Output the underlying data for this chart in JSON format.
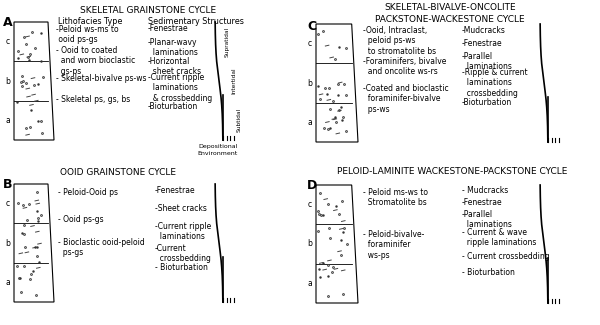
{
  "title_A": "SKELETAL GRAINSTONE CYCLE",
  "title_B": "OOID GRAINSTONE CYCLE",
  "title_C": "SKELETAL-BIVALVE-ONCOLITE\nPACKSTONE-WACKESTONE CYCLE",
  "title_D": "PELOID-LAMINITE WACKESTONE-PACKSTONE CYCLE",
  "litho_A": [
    "-Peloid ws-ms to\n ooid ps-gs",
    "- Ooid to coated\n  and worn bioclastic\n  gs-ps",
    "- Skeletal-bivalve ps-ws",
    "- Skeletal ps, gs, bs"
  ],
  "sed_A": [
    "-Fenestrae",
    "-Planar-wavy\n  laminations",
    "-Horizontal\n  sheet cracks",
    "-Current ripple\n  laminations\n  & crossbedding",
    "-Bioturbation"
  ],
  "litho_B": [
    "- Peloid-Ooid ps",
    "- Ooid ps-gs",
    "- Bioclastic ooid-peloid\n  ps-gs"
  ],
  "sed_B": [
    "-Fenestrae",
    "-Sheet cracks",
    "-Current ripple\n  laminations",
    "-Current\n  crossbedding",
    "- Bioturbation"
  ],
  "litho_C": [
    "-Ooid, Intraclast,\n  peloid ps-ws\n  to stromatolite bs",
    "-Foraminifers, bivalve\n  and oncolite ws-rs",
    "-Coated and bioclastic\n  foraminifer-bivalve\n  ps-ws"
  ],
  "sed_C": [
    "-Mudcracks",
    "-Fenestrae",
    "-Parallel\n  laminations",
    "-Ripple & current\n  laminations\n  crossbedding",
    "-Bioturbation"
  ],
  "litho_D": [
    "- Peloid ms-ws to\n  Stromatolite bs",
    "- Peloid-bivalve-\n  foraminifer\n  ws-ps"
  ],
  "sed_D": [
    "- Mudcracks",
    "-Fenestrae",
    "-Parallel\n  laminations",
    "- Current & wave\n  ripple laminations",
    "- Current crossbedding",
    "- Bioturbation"
  ],
  "font_size": 5.5,
  "title_font_size": 6.5
}
